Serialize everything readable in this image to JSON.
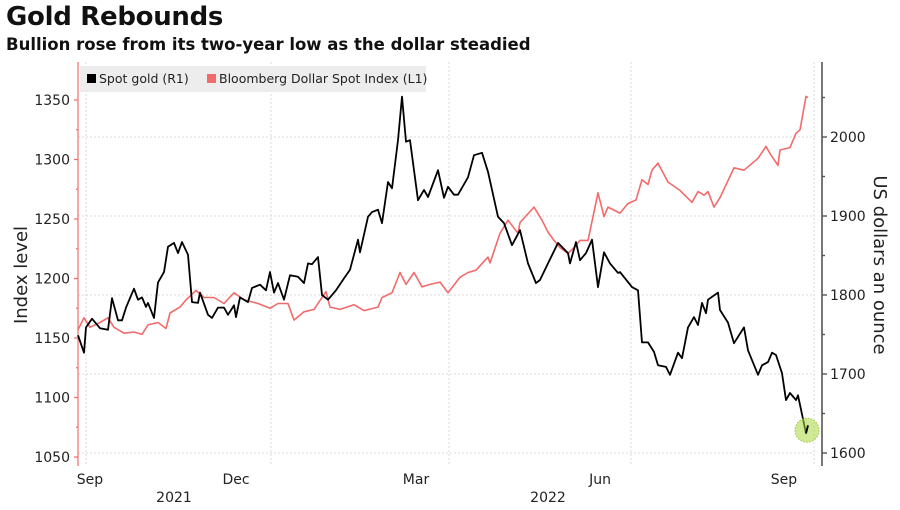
{
  "header": {
    "title": "Gold Rebounds",
    "subtitle": "Bullion rose from its two-year low as the dollar steadied"
  },
  "chart_data": {
    "type": "line",
    "title": "Gold Rebounds",
    "subtitle": "Bullion rose from its two-year low as the dollar steadied",
    "legend_placement": "top-left",
    "grid": true,
    "x_tick_labels": [
      {
        "label": "Sep",
        "day": 6
      },
      {
        "label": "Dec",
        "day": 79
      },
      {
        "label": "Mar",
        "day": 169
      },
      {
        "label": "Jun",
        "day": 261
      },
      {
        "label": "Sep",
        "day": 353
      }
    ],
    "x_year_labels": [
      {
        "label": "2021",
        "day": 48
      },
      {
        "label": "2022",
        "day": 235
      }
    ],
    "left_axis": {
      "label": "Index level",
      "ylim": [
        1045,
        1375
      ],
      "ticks": [
        1050,
        1100,
        1150,
        1200,
        1250,
        1300,
        1350
      ]
    },
    "right_axis": {
      "label": "US dollars an ounce",
      "ylim": [
        1585,
        2095
      ],
      "ticks": [
        1600,
        1700,
        1800,
        1900,
        2000
      ]
    },
    "series": [
      {
        "name": "Spot gold (R1)",
        "axis": "right",
        "color": "#000000",
        "points": [
          [
            0,
            1749
          ],
          [
            3,
            1727
          ],
          [
            4,
            1759
          ],
          [
            7,
            1770
          ],
          [
            11,
            1758
          ],
          [
            15,
            1756
          ],
          [
            17,
            1796
          ],
          [
            20,
            1768
          ],
          [
            22,
            1768
          ],
          [
            24,
            1784
          ],
          [
            28,
            1808
          ],
          [
            30,
            1794
          ],
          [
            32,
            1797
          ],
          [
            34,
            1785
          ],
          [
            35,
            1790
          ],
          [
            38,
            1771
          ],
          [
            40,
            1816
          ],
          [
            43,
            1829
          ],
          [
            45,
            1861
          ],
          [
            48,
            1866
          ],
          [
            50,
            1853
          ],
          [
            52,
            1867
          ],
          [
            55,
            1851
          ],
          [
            57,
            1791
          ],
          [
            60,
            1790
          ],
          [
            61,
            1803
          ],
          [
            65,
            1775
          ],
          [
            67,
            1771
          ],
          [
            70,
            1784
          ],
          [
            73,
            1784
          ],
          [
            75,
            1775
          ],
          [
            78,
            1787
          ],
          [
            79,
            1772
          ],
          [
            81,
            1797
          ],
          [
            85,
            1791
          ],
          [
            87,
            1809
          ],
          [
            91,
            1813
          ],
          [
            94,
            1806
          ],
          [
            96,
            1829
          ],
          [
            98,
            1803
          ],
          [
            100,
            1815
          ],
          [
            103,
            1794
          ],
          [
            106,
            1825
          ],
          [
            110,
            1823
          ],
          [
            113,
            1815
          ],
          [
            115,
            1840
          ],
          [
            117,
            1839
          ],
          [
            120,
            1848
          ],
          [
            122,
            1800
          ],
          [
            125,
            1794
          ],
          [
            129,
            1806
          ],
          [
            133,
            1821
          ],
          [
            136,
            1832
          ],
          [
            140,
            1870
          ],
          [
            141,
            1854
          ],
          [
            145,
            1899
          ],
          [
            147,
            1905
          ],
          [
            150,
            1908
          ],
          [
            152,
            1891
          ],
          [
            155,
            1943
          ],
          [
            157,
            1935
          ],
          [
            160,
            1996
          ],
          [
            162,
            2051
          ],
          [
            164,
            1994
          ],
          [
            166,
            1996
          ],
          [
            170,
            1920
          ],
          [
            173,
            1933
          ],
          [
            175,
            1924
          ],
          [
            180,
            1958
          ],
          [
            183,
            1923
          ],
          [
            185,
            1937
          ],
          [
            188,
            1927
          ],
          [
            190,
            1927
          ],
          [
            195,
            1949
          ],
          [
            198,
            1977
          ],
          [
            202,
            1980
          ],
          [
            205,
            1956
          ],
          [
            210,
            1899
          ],
          [
            213,
            1891
          ],
          [
            217,
            1863
          ],
          [
            221,
            1882
          ],
          [
            225,
            1840
          ],
          [
            229,
            1815
          ],
          [
            231,
            1819
          ],
          [
            235,
            1840
          ],
          [
            240,
            1866
          ],
          [
            245,
            1853
          ],
          [
            246,
            1840
          ],
          [
            249,
            1867
          ],
          [
            251,
            1844
          ],
          [
            254,
            1853
          ],
          [
            257,
            1870
          ],
          [
            260,
            1810
          ],
          [
            263,
            1854
          ],
          [
            266,
            1840
          ],
          [
            270,
            1828
          ],
          [
            271,
            1829
          ],
          [
            277,
            1810
          ],
          [
            280,
            1806
          ],
          [
            282,
            1740
          ],
          [
            285,
            1740
          ],
          [
            288,
            1728
          ],
          [
            290,
            1711
          ],
          [
            294,
            1709
          ],
          [
            296,
            1699
          ],
          [
            300,
            1727
          ],
          [
            302,
            1720
          ],
          [
            305,
            1759
          ],
          [
            308,
            1772
          ],
          [
            310,
            1762
          ],
          [
            312,
            1790
          ],
          [
            314,
            1777
          ],
          [
            315,
            1794
          ],
          [
            320,
            1803
          ],
          [
            321,
            1781
          ],
          [
            325,
            1765
          ],
          [
            328,
            1739
          ],
          [
            333,
            1759
          ],
          [
            335,
            1730
          ],
          [
            340,
            1699
          ],
          [
            342,
            1711
          ],
          [
            345,
            1715
          ],
          [
            347,
            1727
          ],
          [
            349,
            1724
          ],
          [
            352,
            1701
          ],
          [
            354,
            1667
          ],
          [
            356,
            1676
          ],
          [
            359,
            1667
          ],
          [
            360,
            1673
          ],
          [
            364,
            1625
          ],
          [
            365,
            1635
          ]
        ],
        "highlight_last": true
      },
      {
        "name": "Bloomberg Dollar Spot Index (L1)",
        "axis": "left",
        "color": "#f26b6b",
        "points": [
          [
            0,
            1157
          ],
          [
            3,
            1167
          ],
          [
            6,
            1159
          ],
          [
            11,
            1163
          ],
          [
            15,
            1167
          ],
          [
            18,
            1159
          ],
          [
            23,
            1154
          ],
          [
            28,
            1155
          ],
          [
            32,
            1153
          ],
          [
            35,
            1161
          ],
          [
            40,
            1163
          ],
          [
            44,
            1158
          ],
          [
            46,
            1171
          ],
          [
            51,
            1176
          ],
          [
            54,
            1182
          ],
          [
            59,
            1190
          ],
          [
            63,
            1184
          ],
          [
            68,
            1184
          ],
          [
            73,
            1179
          ],
          [
            78,
            1188
          ],
          [
            83,
            1182
          ],
          [
            90,
            1179
          ],
          [
            96,
            1175
          ],
          [
            100,
            1179
          ],
          [
            105,
            1179
          ],
          [
            108,
            1165
          ],
          [
            113,
            1172
          ],
          [
            118,
            1174
          ],
          [
            124,
            1189
          ],
          [
            126,
            1176
          ],
          [
            131,
            1174
          ],
          [
            138,
            1178
          ],
          [
            143,
            1173
          ],
          [
            150,
            1176
          ],
          [
            152,
            1184
          ],
          [
            157,
            1188
          ],
          [
            161,
            1205
          ],
          [
            164,
            1195
          ],
          [
            168,
            1205
          ],
          [
            172,
            1193
          ],
          [
            176,
            1195
          ],
          [
            181,
            1197
          ],
          [
            185,
            1188
          ],
          [
            191,
            1201
          ],
          [
            195,
            1205
          ],
          [
            199,
            1207
          ],
          [
            205,
            1218
          ],
          [
            206,
            1213
          ],
          [
            211,
            1238
          ],
          [
            215,
            1249
          ],
          [
            220,
            1238
          ],
          [
            221,
            1247
          ],
          [
            228,
            1260
          ],
          [
            232,
            1249
          ],
          [
            235,
            1239
          ],
          [
            238,
            1232
          ],
          [
            241,
            1226
          ],
          [
            245,
            1221
          ],
          [
            248,
            1226
          ],
          [
            251,
            1232
          ],
          [
            255,
            1232
          ],
          [
            260,
            1272
          ],
          [
            263,
            1252
          ],
          [
            265,
            1260
          ],
          [
            271,
            1255
          ],
          [
            275,
            1263
          ],
          [
            279,
            1266
          ],
          [
            282,
            1283
          ],
          [
            285,
            1279
          ],
          [
            287,
            1291
          ],
          [
            290,
            1297
          ],
          [
            295,
            1281
          ],
          [
            301,
            1274
          ],
          [
            307,
            1264
          ],
          [
            310,
            1273
          ],
          [
            313,
            1270
          ],
          [
            315,
            1273
          ],
          [
            318,
            1260
          ],
          [
            321,
            1268
          ],
          [
            328,
            1293
          ],
          [
            333,
            1291
          ],
          [
            340,
            1301
          ],
          [
            344,
            1311
          ],
          [
            346,
            1305
          ],
          [
            350,
            1295
          ],
          [
            351,
            1308
          ],
          [
            356,
            1310
          ],
          [
            359,
            1322
          ],
          [
            361,
            1325
          ],
          [
            364,
            1353
          ],
          [
            365,
            1352
          ]
        ]
      }
    ]
  }
}
